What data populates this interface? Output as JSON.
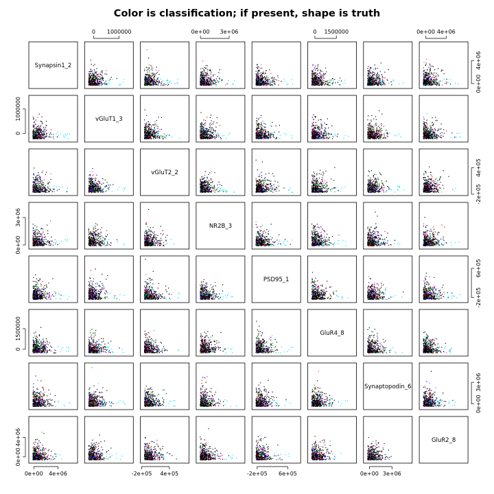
{
  "title": "Color is classification; if present, shape is truth",
  "chart_data": {
    "type": "scatter",
    "layout": "scatterplot-matrix",
    "variables": [
      "Synapsin1_2",
      "vGluT1_3",
      "vGluT2_2",
      "NR2B_3",
      "PSD95_1",
      "GluR4_8",
      "Synaptopodin_6",
      "GluR2_8"
    ],
    "ranges": {
      "Synapsin1_2": [
        -600000,
        7000000
      ],
      "vGluT1_3": [
        -300000,
        1500000
      ],
      "vGluT2_2": [
        -200000,
        800000
      ],
      "NR2B_3": [
        -300000,
        4500000
      ],
      "PSD95_1": [
        -300000,
        900000
      ],
      "GluR4_8": [
        -400000,
        2800000
      ],
      "Synaptopodin_6": [
        -600000,
        5500000
      ],
      "GluR2_8": [
        -1000000,
        8000000
      ]
    },
    "axis_ticks": {
      "Synapsin1_2": [
        {
          "value": 0,
          "label": "0e+00"
        },
        {
          "value": 4000000,
          "label": "4e+06"
        }
      ],
      "vGluT1_3": [
        {
          "value": 0,
          "label": "0"
        },
        {
          "value": 1000000,
          "label": "1000000"
        }
      ],
      "vGluT2_2": [
        {
          "value": -200000,
          "label": "-2e+05"
        },
        {
          "value": 400000,
          "label": "4e+05"
        }
      ],
      "NR2B_3": [
        {
          "value": 0,
          "label": "0e+00"
        },
        {
          "value": 3000000,
          "label": "3e+06"
        }
      ],
      "PSD95_1": [
        {
          "value": -200000,
          "label": "-2e+05"
        },
        {
          "value": 600000,
          "label": "6e+05"
        }
      ],
      "GluR4_8": [
        {
          "value": 0,
          "label": "0"
        },
        {
          "value": 1500000,
          "label": "1500000"
        }
      ],
      "Synaptopodin_6": [
        {
          "value": 0,
          "label": "0e+00"
        },
        {
          "value": 3000000,
          "label": "3e+06"
        }
      ],
      "GluR2_8": [
        {
          "value": 0,
          "label": "0e+00"
        },
        {
          "value": 4000000,
          "label": "4e+06"
        }
      ]
    },
    "class_colors": [
      "#000000",
      "#ff0000",
      "#00cc00",
      "#0000ff",
      "#00e5ff",
      "#ff00ff"
    ],
    "grid": false,
    "legend": "none"
  }
}
